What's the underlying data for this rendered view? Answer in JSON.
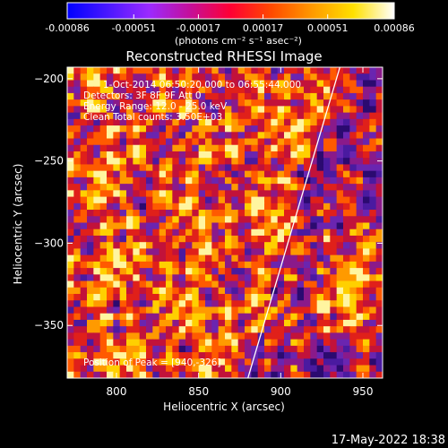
{
  "colorbar": {
    "tick_labels": [
      "-0.00086",
      "-0.00051",
      "-0.00017",
      "0.00017",
      "0.00051",
      "0.00086"
    ],
    "tick_values": [
      -0.00086,
      -0.00051,
      -0.00017,
      0.00017,
      0.00051,
      0.00086
    ],
    "units_label": "(photons cm⁻² s⁻¹ asec⁻²)",
    "colors": [
      "#0000ff",
      "#4a18ff",
      "#9b2aff",
      "#c40f9a",
      "#ff0033",
      "#ff4a00",
      "#ff9a00",
      "#ffe000",
      "#ffffff"
    ]
  },
  "chart_data": {
    "type": "heatmap",
    "title": "Reconstructed RHESSI Image",
    "xlabel": "Heliocentric X (arcsec)",
    "ylabel": "Heliocentric Y (arcsec)",
    "xlim": [
      770,
      962
    ],
    "ylim": [
      -382,
      -193
    ],
    "xticks": [
      800,
      850,
      900,
      950
    ],
    "xtick_labels": [
      "800",
      "850",
      "900",
      "950"
    ],
    "yticks": [
      -200,
      -250,
      -300,
      -350
    ],
    "ytick_labels": [
      "−200",
      "−250",
      "−300",
      "−350"
    ],
    "annotations": [
      "1-Oct-2014 06:50:20.000 to 06:55:44.000",
      "Detectors: 3F 8F 9F  Att 0",
      "Energy Range: 12.0 - 25.0 keV",
      "Clean     Total counts: 3.50E+03"
    ],
    "peak_label": "Position of Peak = [940,-326]",
    "peak": {
      "x": 940,
      "y": -326
    },
    "limb_line": [
      {
        "x": 880,
        "y": -382
      },
      {
        "x": 936,
        "y": -193
      }
    ]
  },
  "footer": {
    "timestamp": "17-May-2022 18:38"
  }
}
